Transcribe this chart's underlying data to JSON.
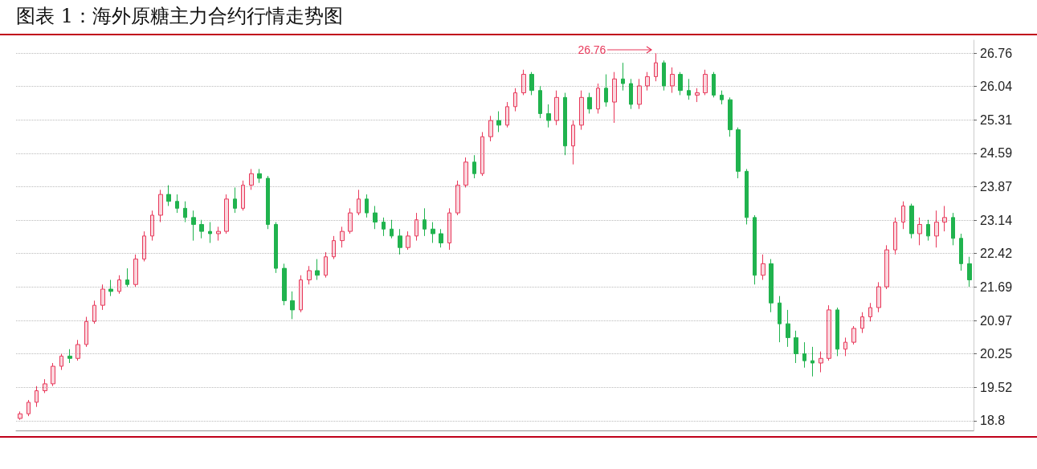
{
  "chart_data": {
    "type": "candlestick",
    "title": "图表 1：海外原糖主力合约行情走势图",
    "categories": [
      null,
      null,
      null,
      null,
      null,
      null,
      null,
      null,
      null,
      null,
      null,
      null,
      null,
      null,
      null,
      null,
      null,
      null,
      null,
      null,
      null,
      null,
      null,
      null,
      null,
      null,
      null,
      null,
      null,
      null,
      null,
      null,
      null,
      null,
      null,
      null,
      null,
      null,
      null,
      null,
      null,
      null,
      null,
      null,
      null,
      null,
      null,
      null,
      null,
      null,
      null,
      null,
      null,
      null,
      null,
      null,
      null,
      null,
      null,
      null,
      null,
      null,
      null,
      null,
      null,
      null,
      null,
      null,
      null,
      null,
      null,
      null,
      null,
      null,
      null,
      null,
      null,
      null,
      null,
      null,
      null,
      null,
      null,
      null,
      null,
      null,
      null,
      null,
      null,
      null,
      null,
      null,
      null,
      null,
      null,
      null,
      null,
      null,
      null,
      null,
      null,
      null,
      null,
      null,
      null,
      null,
      null,
      null,
      null,
      null,
      null,
      null,
      null,
      null,
      null,
      null
    ],
    "ohlc": [
      [
        18.85,
        19.0,
        18.82,
        18.95
      ],
      [
        18.95,
        19.25,
        18.9,
        19.2
      ],
      [
        19.2,
        19.55,
        19.1,
        19.45
      ],
      [
        19.45,
        19.7,
        19.4,
        19.6
      ],
      [
        19.6,
        20.05,
        19.55,
        19.98
      ],
      [
        19.98,
        20.25,
        19.9,
        20.2
      ],
      [
        20.2,
        20.35,
        20.05,
        20.15
      ],
      [
        20.15,
        20.55,
        20.1,
        20.45
      ],
      [
        20.45,
        21.05,
        20.4,
        20.95
      ],
      [
        20.95,
        21.4,
        20.9,
        21.3
      ],
      [
        21.3,
        21.75,
        21.2,
        21.65
      ],
      [
        21.65,
        21.85,
        21.5,
        21.6
      ],
      [
        21.6,
        21.95,
        21.55,
        21.85
      ],
      [
        21.85,
        22.1,
        21.7,
        21.75
      ],
      [
        21.75,
        22.4,
        21.7,
        22.3
      ],
      [
        22.3,
        22.9,
        22.25,
        22.8
      ],
      [
        22.8,
        23.35,
        22.7,
        23.25
      ],
      [
        23.25,
        23.8,
        23.1,
        23.7
      ],
      [
        23.7,
        23.9,
        23.45,
        23.55
      ],
      [
        23.55,
        23.7,
        23.3,
        23.4
      ],
      [
        23.4,
        23.55,
        23.1,
        23.2
      ],
      [
        23.2,
        23.35,
        22.7,
        23.05
      ],
      [
        23.05,
        23.15,
        22.75,
        22.9
      ],
      [
        22.9,
        23.1,
        22.65,
        22.85
      ],
      [
        22.85,
        23.0,
        22.7,
        22.9
      ],
      [
        22.9,
        23.7,
        22.85,
        23.6
      ],
      [
        23.6,
        23.85,
        23.3,
        23.4
      ],
      [
        23.4,
        24.0,
        23.35,
        23.9
      ],
      [
        23.9,
        24.25,
        23.8,
        24.15
      ],
      [
        24.15,
        24.25,
        23.95,
        24.05
      ],
      [
        24.05,
        24.1,
        22.95,
        23.05
      ],
      [
        23.05,
        23.1,
        22.0,
        22.1
      ],
      [
        22.1,
        22.2,
        21.3,
        21.4
      ],
      [
        21.4,
        21.6,
        21.0,
        21.2
      ],
      [
        21.2,
        21.95,
        21.15,
        21.85
      ],
      [
        21.85,
        22.15,
        21.75,
        22.05
      ],
      [
        22.05,
        22.3,
        21.85,
        21.95
      ],
      [
        21.95,
        22.45,
        21.9,
        22.35
      ],
      [
        22.35,
        22.8,
        22.3,
        22.7
      ],
      [
        22.7,
        23.0,
        22.55,
        22.9
      ],
      [
        22.9,
        23.4,
        22.85,
        23.3
      ],
      [
        23.3,
        23.8,
        23.25,
        23.6
      ],
      [
        23.6,
        23.7,
        23.2,
        23.3
      ],
      [
        23.3,
        23.45,
        22.95,
        23.1
      ],
      [
        23.1,
        23.2,
        22.8,
        22.95
      ],
      [
        22.95,
        23.15,
        22.75,
        22.8
      ],
      [
        22.8,
        22.95,
        22.4,
        22.55
      ],
      [
        22.55,
        22.9,
        22.5,
        22.8
      ],
      [
        22.8,
        23.3,
        22.7,
        23.15
      ],
      [
        23.15,
        23.4,
        22.8,
        22.95
      ],
      [
        22.95,
        23.1,
        22.65,
        22.85
      ],
      [
        22.85,
        22.95,
        22.55,
        22.65
      ],
      [
        22.65,
        23.4,
        22.5,
        23.3
      ],
      [
        23.3,
        24.0,
        23.25,
        23.9
      ],
      [
        23.9,
        24.5,
        23.85,
        24.4
      ],
      [
        24.4,
        24.55,
        24.05,
        24.15
      ],
      [
        24.15,
        25.05,
        24.1,
        24.95
      ],
      [
        24.95,
        25.4,
        24.85,
        25.3
      ],
      [
        25.3,
        25.5,
        25.05,
        25.2
      ],
      [
        25.2,
        25.7,
        25.15,
        25.6
      ],
      [
        25.6,
        26.0,
        25.5,
        25.9
      ],
      [
        25.9,
        26.4,
        25.85,
        26.3
      ],
      [
        26.3,
        26.35,
        25.85,
        25.95
      ],
      [
        25.95,
        26.05,
        25.35,
        25.45
      ],
      [
        25.45,
        25.65,
        25.15,
        25.3
      ],
      [
        25.3,
        25.95,
        25.2,
        25.8
      ],
      [
        25.8,
        25.9,
        24.55,
        24.75
      ],
      [
        24.75,
        25.3,
        24.35,
        25.2
      ],
      [
        25.2,
        25.95,
        25.1,
        25.8
      ],
      [
        25.8,
        25.9,
        25.45,
        25.55
      ],
      [
        25.55,
        26.1,
        25.45,
        26.0
      ],
      [
        26.0,
        26.3,
        25.6,
        25.7
      ],
      [
        25.7,
        26.35,
        25.25,
        26.2
      ],
      [
        26.2,
        26.55,
        25.95,
        26.1
      ],
      [
        26.1,
        26.2,
        25.55,
        25.65
      ],
      [
        25.65,
        26.2,
        25.55,
        26.05
      ],
      [
        26.05,
        26.35,
        25.95,
        26.25
      ],
      [
        26.25,
        26.76,
        26.15,
        26.55
      ],
      [
        26.55,
        26.6,
        25.95,
        26.05
      ],
      [
        26.05,
        26.45,
        25.9,
        26.3
      ],
      [
        26.3,
        26.35,
        25.85,
        25.95
      ],
      [
        25.95,
        26.2,
        25.75,
        25.85
      ],
      [
        25.85,
        26.0,
        25.7,
        25.9
      ],
      [
        25.9,
        26.4,
        25.85,
        26.3
      ],
      [
        26.3,
        26.35,
        25.8,
        25.85
      ],
      [
        25.85,
        25.95,
        25.65,
        25.75
      ],
      [
        25.75,
        25.8,
        24.95,
        25.1
      ],
      [
        25.1,
        25.15,
        24.05,
        24.2
      ],
      [
        24.2,
        24.25,
        23.05,
        23.2
      ],
      [
        23.2,
        23.25,
        21.75,
        21.95
      ],
      [
        21.95,
        22.4,
        21.85,
        22.2
      ],
      [
        22.2,
        22.3,
        21.15,
        21.35
      ],
      [
        21.35,
        21.5,
        20.5,
        20.9
      ],
      [
        20.9,
        21.2,
        20.4,
        20.6
      ],
      [
        20.6,
        20.75,
        20.05,
        20.25
      ],
      [
        20.25,
        20.5,
        19.95,
        20.1
      ],
      [
        20.1,
        20.4,
        19.76,
        20.05
      ],
      [
        20.05,
        20.3,
        19.85,
        20.15
      ],
      [
        20.15,
        21.3,
        20.1,
        21.2
      ],
      [
        21.2,
        21.25,
        20.2,
        20.35
      ],
      [
        20.35,
        20.6,
        20.2,
        20.5
      ],
      [
        20.5,
        20.85,
        20.45,
        20.8
      ],
      [
        20.8,
        21.15,
        20.7,
        21.05
      ],
      [
        21.05,
        21.35,
        20.95,
        21.25
      ],
      [
        21.25,
        21.8,
        21.15,
        21.7
      ],
      [
        21.7,
        22.6,
        21.65,
        22.5
      ],
      [
        22.5,
        23.2,
        22.4,
        23.1
      ],
      [
        23.1,
        23.55,
        22.95,
        23.45
      ],
      [
        23.45,
        23.5,
        22.75,
        22.85
      ],
      [
        22.85,
        23.2,
        22.6,
        23.05
      ],
      [
        23.05,
        23.15,
        22.7,
        22.8
      ],
      [
        22.8,
        23.35,
        22.55,
        23.1
      ],
      [
        23.1,
        23.45,
        22.9,
        23.2
      ],
      [
        23.2,
        23.3,
        22.6,
        22.75
      ],
      [
        22.75,
        22.85,
        22.05,
        22.2
      ],
      [
        22.2,
        22.35,
        21.7,
        21.85
      ]
    ],
    "colors": [
      "#e8385a",
      "#e8385a",
      "#e8385a",
      "#e8385a",
      "#e8385a",
      "#e8385a",
      "#20b34e",
      "#e8385a",
      "#e8385a",
      "#e8385a",
      "#e8385a",
      "#20b34e",
      "#e8385a",
      "#20b34e",
      "#e8385a",
      "#e8385a",
      "#e8385a",
      "#e8385a",
      "#20b34e",
      "#20b34e",
      "#20b34e",
      "#20b34e",
      "#20b34e",
      "#20b34e",
      "#e8385a",
      "#e8385a",
      "#20b34e",
      "#e8385a",
      "#e8385a",
      "#20b34e",
      "#20b34e",
      "#20b34e",
      "#20b34e",
      "#20b34e",
      "#e8385a",
      "#e8385a",
      "#20b34e",
      "#e8385a",
      "#e8385a",
      "#e8385a",
      "#e8385a",
      "#e8385a",
      "#20b34e",
      "#20b34e",
      "#20b34e",
      "#20b34e",
      "#20b34e",
      "#e8385a",
      "#e8385a",
      "#20b34e",
      "#20b34e",
      "#20b34e",
      "#e8385a",
      "#e8385a",
      "#e8385a",
      "#20b34e",
      "#e8385a",
      "#e8385a",
      "#20b34e",
      "#e8385a",
      "#e8385a",
      "#e8385a",
      "#20b34e",
      "#20b34e",
      "#20b34e",
      "#e8385a",
      "#20b34e",
      "#e8385a",
      "#e8385a",
      "#20b34e",
      "#e8385a",
      "#20b34e",
      "#e8385a",
      "#20b34e",
      "#20b34e",
      "#e8385a",
      "#e8385a",
      "#e8385a",
      "#20b34e",
      "#e8385a",
      "#20b34e",
      "#20b34e",
      "#e8385a",
      "#e8385a",
      "#20b34e",
      "#20b34e",
      "#20b34e",
      "#20b34e",
      "#20b34e",
      "#20b34e",
      "#e8385a",
      "#20b34e",
      "#20b34e",
      "#20b34e",
      "#20b34e",
      "#20b34e",
      "#20b34e",
      "#e8385a",
      "#e8385a",
      "#20b34e",
      "#e8385a",
      "#e8385a",
      "#e8385a",
      "#e8385a",
      "#e8385a",
      "#e8385a",
      "#e8385a",
      "#e8385a",
      "#20b34e",
      "#e8385a",
      "#20b34e",
      "#e8385a",
      "#e8385a",
      "#20b34e",
      "#20b34e",
      "#20b34e"
    ],
    "ylim": [
      18.59,
      27.04
    ],
    "yticks": [
      18.8,
      19.52,
      20.25,
      20.97,
      21.69,
      22.42,
      23.14,
      23.87,
      24.59,
      25.31,
      26.04,
      26.76
    ],
    "grid": "y",
    "tick_labels": "y",
    "annotations": [
      "26.76"
    ]
  }
}
